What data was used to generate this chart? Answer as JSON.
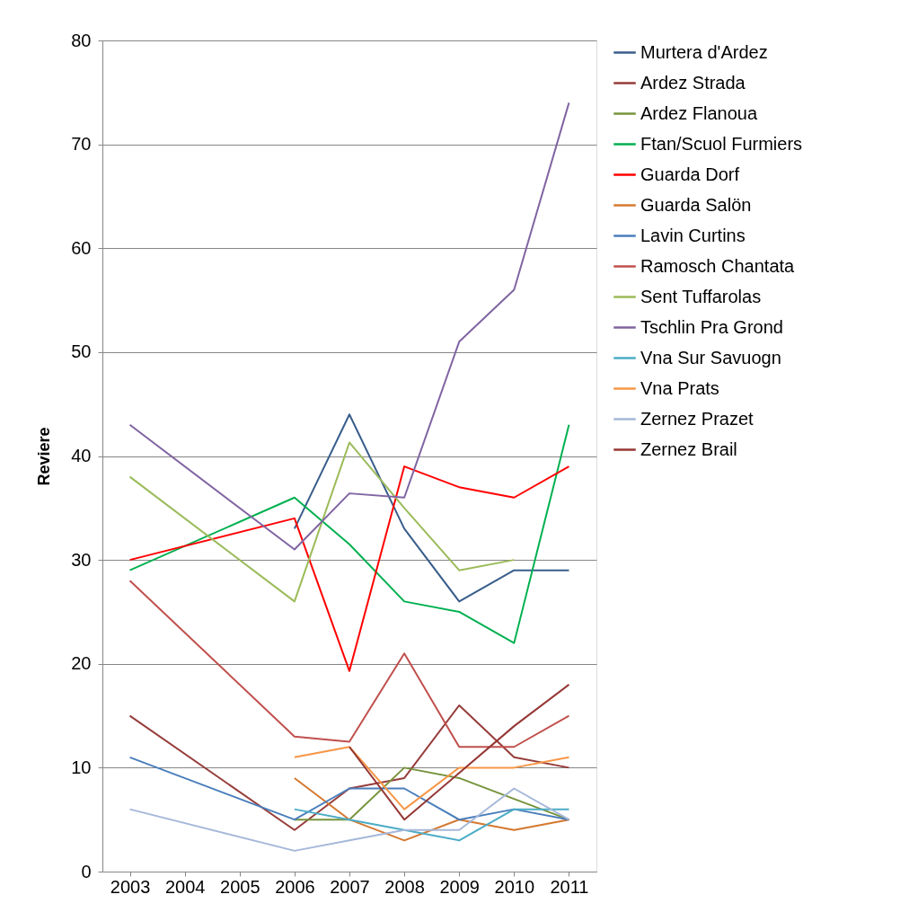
{
  "chart_data": {
    "type": "line",
    "ylabel": "Reviere",
    "categories": [
      "2003",
      "2004",
      "2005",
      "2006",
      "2007",
      "2008",
      "2009",
      "2010",
      "2011"
    ],
    "ylim": [
      0,
      80
    ],
    "yticks": [
      0,
      10,
      20,
      30,
      40,
      50,
      60,
      70,
      80
    ],
    "grid": "y",
    "legend": "right",
    "line_style": "solid",
    "marker": "none",
    "series": [
      {
        "name": "Murtera d'Ardez",
        "color": "#385d8a",
        "values": [
          null,
          null,
          null,
          33,
          44,
          33,
          26,
          29,
          29
        ]
      },
      {
        "name": "Ardez Strada",
        "color": "#963c3a",
        "values": [
          15,
          null,
          null,
          4,
          8,
          9,
          16,
          11,
          10
        ]
      },
      {
        "name": "Ardez Flanoua",
        "color": "#77933c",
        "values": [
          null,
          null,
          null,
          5,
          5,
          10,
          9,
          7,
          5
        ]
      },
      {
        "name": "Ftan/Scuol Furmiers",
        "color": "#00b050",
        "values": [
          29,
          null,
          null,
          36,
          31.5,
          26,
          25,
          22,
          43
        ]
      },
      {
        "name": "Guarda Dorf",
        "color": "#ff0000",
        "values": [
          30,
          null,
          null,
          34,
          19.3,
          39,
          37,
          36,
          39
        ]
      },
      {
        "name": "Guarda Salön",
        "color": "#d3782f",
        "values": [
          null,
          null,
          null,
          9,
          5,
          3,
          5,
          4,
          5
        ]
      },
      {
        "name": "Lavin Curtins",
        "color": "#4a7ebb",
        "values": [
          11,
          null,
          null,
          5,
          8,
          8,
          5,
          6,
          5
        ]
      },
      {
        "name": "Ramosch Chantata",
        "color": "#c0504d",
        "values": [
          28,
          null,
          null,
          13,
          12.5,
          21,
          12,
          12,
          15
        ]
      },
      {
        "name": "Sent Tuffarolas",
        "color": "#9bbb59",
        "values": [
          38,
          null,
          null,
          26,
          41.3,
          35,
          29,
          30,
          null
        ]
      },
      {
        "name": "Tschlin Pra Grond",
        "color": "#8064a2",
        "values": [
          43,
          null,
          null,
          31,
          36.4,
          36,
          51,
          56,
          74
        ]
      },
      {
        "name": "Vna Sur Savuogn",
        "color": "#4bacc6",
        "values": [
          null,
          null,
          null,
          6,
          5,
          4,
          3,
          6,
          6
        ]
      },
      {
        "name": "Vna Prats",
        "color": "#f79646",
        "values": [
          null,
          null,
          null,
          11,
          12,
          6,
          10,
          10,
          11
        ]
      },
      {
        "name": "Zernez Prazet",
        "color": "#a5b8d9",
        "values": [
          6,
          null,
          null,
          2,
          3,
          4,
          4,
          8,
          5
        ]
      },
      {
        "name": "Zernez Brail",
        "color": "#943634",
        "values": [
          null,
          null,
          null,
          null,
          12,
          5,
          9.5,
          14,
          18
        ]
      }
    ]
  }
}
